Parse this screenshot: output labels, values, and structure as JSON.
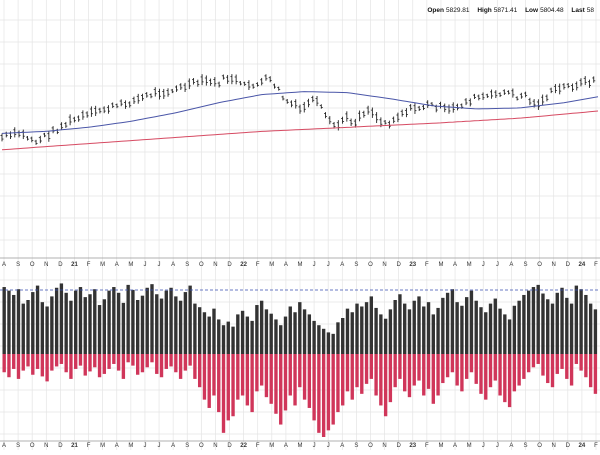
{
  "legend": {
    "open_label": "Open",
    "open_value": "5829.81",
    "high_label": "High",
    "high_value": "5871.41",
    "low_label": "Low",
    "low_value": "5804.48",
    "last_label": "Last",
    "last_value": "58"
  },
  "colors": {
    "price": "#222222",
    "ma_fast": "#4a56a8",
    "ma_slow": "#d64a62",
    "bar_positive": "#333333",
    "bar_negative": "#d0365a",
    "dashed_reference": "#3a4fb0",
    "grid": "#e4e4e4"
  },
  "chart_data": [
    {
      "type": "ohlc",
      "x_ticks": [
        "A",
        "S",
        "O",
        "N",
        "D",
        "21",
        "F",
        "M",
        "A",
        "M",
        "J",
        "J",
        "A",
        "S",
        "O",
        "N",
        "D",
        "22",
        "F",
        "M",
        "A",
        "M",
        "J",
        "J",
        "A",
        "S",
        "O",
        "N",
        "D",
        "23",
        "F",
        "M",
        "A",
        "M",
        "J",
        "J",
        "A",
        "S",
        "O",
        "N",
        "D",
        "24",
        "F"
      ],
      "grid": true,
      "price_series": {
        "description_points": [
          [
            0,
            0.38
          ],
          [
            4,
            0.36
          ],
          [
            8,
            0.4
          ],
          [
            12,
            0.35
          ],
          [
            16,
            0.3
          ],
          [
            20,
            0.27
          ],
          [
            24,
            0.24
          ],
          [
            28,
            0.22
          ],
          [
            32,
            0.19
          ],
          [
            36,
            0.16
          ],
          [
            40,
            0.15
          ],
          [
            44,
            0.12
          ],
          [
            48,
            0.1
          ],
          [
            50,
            0.12
          ],
          [
            52,
            0.09
          ],
          [
            54,
            0.09
          ],
          [
            56,
            0.13
          ],
          [
            58,
            0.12
          ],
          [
            60,
            0.12
          ],
          [
            62,
            0.09
          ],
          [
            64,
            0.13
          ],
          [
            66,
            0.2
          ],
          [
            68,
            0.22
          ],
          [
            70,
            0.25
          ],
          [
            72,
            0.19
          ],
          [
            74,
            0.22
          ],
          [
            76,
            0.3
          ],
          [
            78,
            0.33
          ],
          [
            80,
            0.28
          ],
          [
            82,
            0.31
          ],
          [
            84,
            0.26
          ],
          [
            86,
            0.24
          ],
          [
            88,
            0.3
          ],
          [
            90,
            0.31
          ],
          [
            92,
            0.28
          ],
          [
            94,
            0.25
          ],
          [
            96,
            0.24
          ],
          [
            98,
            0.23
          ],
          [
            100,
            0.22
          ],
          [
            102,
            0.23
          ],
          [
            104,
            0.25
          ],
          [
            106,
            0.23
          ],
          [
            108,
            0.21
          ],
          [
            110,
            0.19
          ],
          [
            112,
            0.18
          ],
          [
            114,
            0.18
          ],
          [
            116,
            0.16
          ],
          [
            118,
            0.16
          ],
          [
            120,
            0.18
          ],
          [
            122,
            0.17
          ],
          [
            124,
            0.22
          ],
          [
            126,
            0.2
          ],
          [
            128,
            0.16
          ],
          [
            130,
            0.14
          ],
          [
            132,
            0.13
          ],
          [
            134,
            0.12
          ],
          [
            136,
            0.11
          ],
          [
            138,
            0.1
          ]
        ]
      },
      "ma_fast": [
        [
          0,
          0.36
        ],
        [
          10,
          0.35
        ],
        [
          20,
          0.33
        ],
        [
          30,
          0.3
        ],
        [
          40,
          0.26
        ],
        [
          50,
          0.21
        ],
        [
          60,
          0.17
        ],
        [
          70,
          0.155
        ],
        [
          80,
          0.16
        ],
        [
          90,
          0.19
        ],
        [
          100,
          0.225
        ],
        [
          110,
          0.24
        ],
        [
          120,
          0.235
        ],
        [
          130,
          0.21
        ],
        [
          138,
          0.18
        ]
      ],
      "ma_slow": [
        [
          0,
          0.44
        ],
        [
          20,
          0.41
        ],
        [
          40,
          0.38
        ],
        [
          60,
          0.35
        ],
        [
          80,
          0.33
        ],
        [
          100,
          0.31
        ],
        [
          120,
          0.285
        ],
        [
          138,
          0.25
        ]
      ]
    },
    {
      "type": "bar",
      "series": [
        {
          "values_pos": [
            0.93,
            0.88,
            0.82,
            0.9,
            0.7,
            0.75,
            0.86,
            0.95,
            0.72,
            0.66,
            0.8,
            0.92,
            0.98,
            0.85,
            0.74,
            0.88,
            0.93,
            0.79,
            0.83,
            0.9,
            0.68,
            0.76,
            0.88,
            0.93,
            0.85,
            0.71,
            0.96,
            0.89,
            0.75,
            0.81,
            0.92,
            0.97,
            0.83,
            0.77,
            0.88,
            0.92,
            0.8,
            0.74,
            0.86,
            0.95,
            0.7,
            0.65,
            0.58,
            0.52,
            0.63,
            0.48,
            0.4,
            0.45,
            0.38,
            0.55,
            0.6,
            0.52,
            0.46,
            0.68,
            0.74,
            0.62,
            0.56,
            0.48,
            0.4,
            0.52,
            0.66,
            0.58,
            0.72,
            0.62,
            0.55,
            0.46,
            0.4,
            0.35,
            0.3,
            0.28,
            0.44,
            0.5,
            0.63,
            0.58,
            0.7,
            0.66,
            0.72,
            0.8,
            0.64,
            0.55,
            0.49,
            0.62,
            0.75,
            0.83,
            0.7,
            0.62,
            0.74,
            0.8,
            0.66,
            0.72,
            0.55,
            0.64,
            0.78,
            0.85,
            0.9,
            0.72,
            0.67,
            0.79,
            0.88,
            0.74,
            0.65,
            0.58,
            0.7,
            0.77,
            0.63,
            0.55,
            0.48,
            0.67,
            0.74,
            0.82,
            0.88,
            0.93,
            0.96,
            0.84,
            0.76,
            0.7,
            0.85,
            0.92,
            0.78,
            0.7,
            0.95,
            0.9,
            0.82,
            0.7,
            0.62
          ],
          "values_neg": [
            0.22,
            0.28,
            0.18,
            0.3,
            0.2,
            0.15,
            0.25,
            0.18,
            0.27,
            0.33,
            0.2,
            0.15,
            0.12,
            0.22,
            0.3,
            0.18,
            0.14,
            0.26,
            0.21,
            0.16,
            0.28,
            0.24,
            0.18,
            0.12,
            0.2,
            0.3,
            0.1,
            0.14,
            0.25,
            0.22,
            0.16,
            0.1,
            0.24,
            0.28,
            0.18,
            0.15,
            0.22,
            0.3,
            0.2,
            0.14,
            0.3,
            0.4,
            0.55,
            0.65,
            0.5,
            0.7,
            0.95,
            0.8,
            0.75,
            0.55,
            0.5,
            0.62,
            0.7,
            0.45,
            0.38,
            0.52,
            0.6,
            0.72,
            0.85,
            0.68,
            0.5,
            0.62,
            0.4,
            0.55,
            0.65,
            0.8,
            0.95,
            1.0,
            0.92,
            0.85,
            0.7,
            0.62,
            0.45,
            0.55,
            0.4,
            0.48,
            0.36,
            0.3,
            0.5,
            0.62,
            0.75,
            0.58,
            0.4,
            0.3,
            0.45,
            0.52,
            0.38,
            0.32,
            0.5,
            0.42,
            0.6,
            0.5,
            0.35,
            0.28,
            0.22,
            0.38,
            0.45,
            0.3,
            0.22,
            0.36,
            0.48,
            0.55,
            0.4,
            0.32,
            0.5,
            0.58,
            0.64,
            0.45,
            0.38,
            0.3,
            0.22,
            0.16,
            0.12,
            0.26,
            0.35,
            0.4,
            0.24,
            0.18,
            0.3,
            0.38,
            0.12,
            0.2,
            0.28,
            0.4,
            0.48
          ]
        }
      ],
      "x_ticks": [
        "A",
        "S",
        "O",
        "N",
        "D",
        "21",
        "F",
        "M",
        "A",
        "M",
        "J",
        "J",
        "A",
        "S",
        "O",
        "N",
        "D",
        "22",
        "F",
        "M",
        "A",
        "M",
        "J",
        "J",
        "A",
        "S",
        "O",
        "N",
        "D",
        "23",
        "F",
        "M",
        "A",
        "M",
        "J",
        "J",
        "A",
        "S",
        "O",
        "N",
        "D",
        "24",
        "F"
      ]
    }
  ]
}
